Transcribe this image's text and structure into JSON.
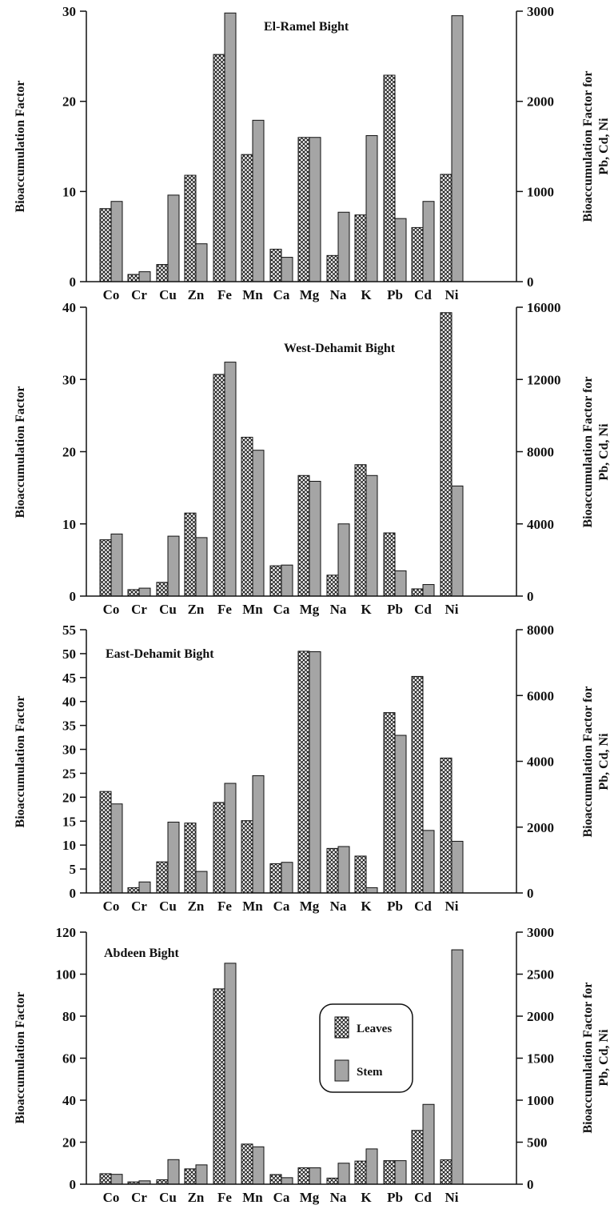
{
  "chart_data": [
    {
      "type": "bar",
      "title": "El-Ramel Bight",
      "categories": [
        "Co",
        "Cr",
        "Cu",
        "Zn",
        "Fe",
        "Mn",
        "Ca",
        "Mg",
        "Na",
        "K",
        "Pb",
        "Cd",
        "Ni"
      ],
      "secondary_axis_categories": [
        "Pb",
        "Cd",
        "Ni"
      ],
      "ylabel": "Bioaccumulation Factor",
      "ylabel_right": [
        "Bioaccumulation Factor for",
        "Pb, Cd, Ni"
      ],
      "ylim": [
        0,
        30
      ],
      "yticks": [
        0,
        10,
        20,
        30
      ],
      "ylim_right": [
        0,
        3000
      ],
      "yticks_right": [
        0,
        1000,
        2000,
        3000
      ],
      "series": [
        {
          "name": "Leaves",
          "values": [
            8.1,
            0.8,
            1.9,
            11.8,
            25.2,
            14.1,
            3.6,
            16.0,
            2.9,
            7.4,
            2290,
            600,
            1190
          ]
        },
        {
          "name": "Stem",
          "values": [
            8.9,
            1.1,
            9.6,
            4.2,
            29.8,
            17.9,
            2.7,
            16.0,
            7.7,
            16.2,
            700,
            890,
            2950
          ]
        }
      ]
    },
    {
      "type": "bar",
      "title": "West-Dehamit Bight",
      "categories": [
        "Co",
        "Cr",
        "Cu",
        "Zn",
        "Fe",
        "Mn",
        "Ca",
        "Mg",
        "Na",
        "K",
        "Pb",
        "Cd",
        "Ni"
      ],
      "secondary_axis_categories": [
        "Pb",
        "Cd",
        "Ni"
      ],
      "ylabel": "Bioaccumulation Factor",
      "ylabel_right": [
        "Bioaccumulation Factor for",
        "Pb, Cd, Ni"
      ],
      "ylim": [
        0,
        40
      ],
      "yticks": [
        0,
        10,
        20,
        30,
        40
      ],
      "ylim_right": [
        0,
        16000
      ],
      "yticks_right": [
        0,
        4000,
        8000,
        12000,
        16000
      ],
      "series": [
        {
          "name": "Leaves",
          "values": [
            7.8,
            0.9,
            1.9,
            11.5,
            30.7,
            22.0,
            4.2,
            16.7,
            2.9,
            18.2,
            3500,
            400,
            15700
          ]
        },
        {
          "name": "Stem",
          "values": [
            8.6,
            1.1,
            8.3,
            8.1,
            32.4,
            20.2,
            4.3,
            15.9,
            10.0,
            16.7,
            1400,
            640,
            6100
          ]
        }
      ]
    },
    {
      "type": "bar",
      "title": "East-Dehamit Bight",
      "categories": [
        "Co",
        "Cr",
        "Cu",
        "Zn",
        "Fe",
        "Mn",
        "Ca",
        "Mg",
        "Na",
        "K",
        "Pb",
        "Cd",
        "Ni"
      ],
      "secondary_axis_categories": [
        "Pb",
        "Cd",
        "Ni"
      ],
      "ylabel": "Bioaccumulation Factor",
      "ylabel_right": [
        "Bioaccumulation Factor for",
        "Pb, Cd, Ni"
      ],
      "ylim": [
        0,
        55
      ],
      "yticks": [
        0,
        5,
        10,
        15,
        20,
        25,
        30,
        35,
        40,
        45,
        50,
        55
      ],
      "ylim_right": [
        0,
        8000
      ],
      "yticks_right": [
        0,
        2000,
        4000,
        6000,
        8000
      ],
      "series": [
        {
          "name": "Leaves",
          "values": [
            21.2,
            1.1,
            6.5,
            14.6,
            18.9,
            15.1,
            6.1,
            50.5,
            9.3,
            7.7,
            5480,
            6580,
            4100
          ]
        },
        {
          "name": "Stem",
          "values": [
            18.6,
            2.3,
            14.8,
            4.5,
            22.9,
            24.5,
            6.4,
            50.4,
            9.7,
            1.1,
            4790,
            1900,
            1570
          ]
        }
      ]
    },
    {
      "type": "bar",
      "title": "Abdeen Bight",
      "categories": [
        "Co",
        "Cr",
        "Cu",
        "Zn",
        "Fe",
        "Mn",
        "Ca",
        "Mg",
        "Na",
        "K",
        "Pb",
        "Cd",
        "Ni"
      ],
      "secondary_axis_categories": [
        "Pb",
        "Cd",
        "Ni"
      ],
      "ylabel": "Bioaccumulation Factor",
      "ylabel_right": [
        "Bioaccumulation Factor for",
        "Pb, Cd, Ni"
      ],
      "ylim": [
        0,
        120
      ],
      "yticks": [
        0,
        20,
        40,
        60,
        80,
        100,
        120
      ],
      "ylim_right": [
        0,
        3000
      ],
      "yticks_right": [
        0,
        500,
        1000,
        1500,
        2000,
        2500,
        3000
      ],
      "series": [
        {
          "name": "Leaves",
          "values": [
            5.0,
            1.1,
            2.1,
            7.3,
            93.0,
            19.1,
            4.6,
            7.8,
            2.9,
            11.0,
            280,
            640,
            290
          ]
        },
        {
          "name": "Stem",
          "values": [
            4.7,
            1.6,
            11.7,
            9.2,
            105.2,
            17.8,
            3.1,
            7.8,
            10.0,
            16.8,
            280,
            950,
            2790
          ]
        }
      ],
      "legend": {
        "placement": "center-right",
        "items": [
          "Leaves",
          "Stem"
        ]
      }
    }
  ]
}
